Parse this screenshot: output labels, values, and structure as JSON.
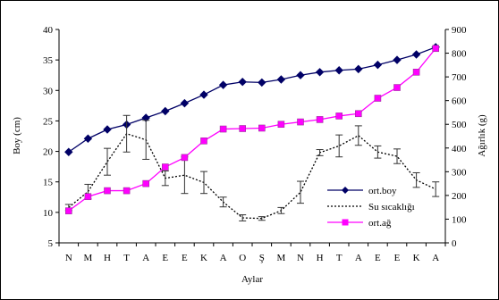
{
  "chart_data": {
    "type": "line",
    "categories": [
      "N",
      "M",
      "H",
      "T",
      "A",
      "E",
      "E",
      "K",
      "A",
      "O",
      "Ş",
      "M",
      "N",
      "H",
      "T",
      "A",
      "E",
      "E",
      "K",
      "A"
    ],
    "xlabel": "Aylar",
    "ylabel_left": "Boy (cm)",
    "ylabel_right": "Ağırlık (g)",
    "ylim_left": [
      5,
      40
    ],
    "yticks_left": [
      5,
      10,
      15,
      20,
      25,
      30,
      35,
      40
    ],
    "ylim_right": [
      0,
      900
    ],
    "yticks_right": [
      0,
      100,
      200,
      300,
      400,
      500,
      600,
      700,
      800,
      900
    ],
    "grid": false,
    "legend_position": "bottom-right",
    "series": [
      {
        "name": "ort.boy",
        "axis": "left",
        "style": "solid",
        "marker": "diamond",
        "color": "#000066",
        "values": [
          19.9,
          22.1,
          23.6,
          24.4,
          25.5,
          26.6,
          27.9,
          29.3,
          30.9,
          31.4,
          31.3,
          31.8,
          32.5,
          33.0,
          33.3,
          33.5,
          34.2,
          35.0,
          35.9,
          37.1
        ]
      },
      {
        "name": "Su sıcaklığı",
        "axis": "left",
        "style": "dotted",
        "marker": "none",
        "color": "#000000",
        "values": [
          10.8,
          13.4,
          18.3,
          22.9,
          21.9,
          15.6,
          16.1,
          14.9,
          11.7,
          9.1,
          9.0,
          10.3,
          13.3,
          19.8,
          20.9,
          22.6,
          19.9,
          19.2,
          15.3,
          13.8
        ],
        "errors": [
          0.5,
          1.2,
          2.2,
          3.0,
          3.2,
          1.2,
          3.0,
          1.8,
          0.8,
          0.5,
          0.3,
          0.5,
          1.8,
          0.5,
          1.8,
          1.6,
          1.0,
          1.2,
          1.2,
          1.2
        ]
      },
      {
        "name": "ort.ağ",
        "axis": "right",
        "style": "solid",
        "marker": "square",
        "color": "#ff00ff",
        "values": [
          135,
          195,
          220,
          220,
          250,
          320,
          360,
          430,
          480,
          482,
          484,
          500,
          510,
          520,
          535,
          545,
          610,
          655,
          720,
          820
        ]
      }
    ]
  },
  "colors": {
    "axis": "#000000",
    "frame": "#000000",
    "background": "#ffffff",
    "errorbar": "#333333"
  }
}
